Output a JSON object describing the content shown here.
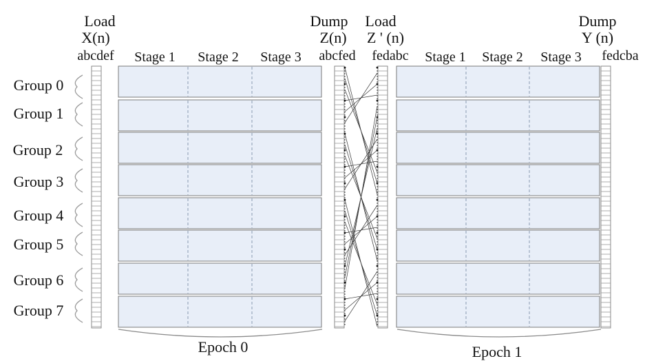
{
  "headers": {
    "load_x": {
      "line1": "Load",
      "line2": "X(n)",
      "order": "abcdef"
    },
    "dump_z": {
      "line1": "Dump",
      "line2": "Z(n)",
      "order": "abcfed"
    },
    "load_z": {
      "line1": "Load",
      "line2": "Z ' (n)",
      "order": "fedabc"
    },
    "dump_y": {
      "line1": "Dump",
      "line2": "Y (n)",
      "order": "fedcba"
    }
  },
  "epochs": [
    {
      "label": "Epoch 0",
      "stages": [
        "Stage 1",
        "Stage 2",
        "Stage 3"
      ]
    },
    {
      "label": "Epoch 1",
      "stages": [
        "Stage 1",
        "Stage 2",
        "Stage 3"
      ]
    }
  ],
  "groups": [
    "Group 0",
    "Group 1",
    "Group 2",
    "Group 3",
    "Group 4",
    "Group 5",
    "Group 6",
    "Group 7"
  ],
  "colors": {
    "block_fill": "#e8eef8",
    "block_stroke": "#7a7a7a",
    "divider": "#7f8fa8"
  }
}
